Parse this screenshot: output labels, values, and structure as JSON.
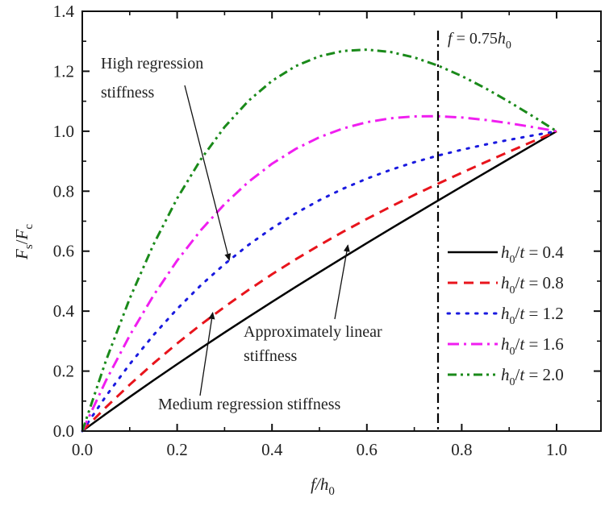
{
  "chart_data": {
    "type": "line",
    "title": "",
    "xlabel": "f/h0",
    "xlabel_parts": {
      "main": "f/h",
      "sub": "0"
    },
    "ylabel": "Fs/Fc",
    "ylabel_parts": {
      "a": "F",
      "a_sub": "s",
      "slash": "/",
      "b": "F",
      "b_sub": "c"
    },
    "xlim": [
      0.0,
      1.0
    ],
    "ylim": [
      0.0,
      1.4
    ],
    "xticks": [
      "0.0",
      "0.2",
      "0.4",
      "0.6",
      "0.8",
      "1.0"
    ],
    "yticks": [
      "0.0",
      "0.2",
      "0.4",
      "0.6",
      "0.8",
      "1.0",
      "1.2",
      "1.4"
    ],
    "grid": false,
    "legend_position": "lower-right",
    "x": [
      0,
      0.05,
      0.1,
      0.15,
      0.2,
      0.25,
      0.3,
      0.35,
      0.4,
      0.45,
      0.5,
      0.55,
      0.6,
      0.65,
      0.7,
      0.75,
      0.8,
      0.85,
      0.9,
      0.95,
      1.0
    ],
    "series": [
      {
        "name": "h0/t = 0.4",
        "label_main": "h",
        "label_sub": "0",
        "label_rest": "/t = 0.4",
        "color": "#000000",
        "style": "solid",
        "values": [
          0,
          0.0574,
          0.1137,
          0.1689,
          0.223,
          0.2763,
          0.3286,
          0.38,
          0.4307,
          0.4807,
          0.53,
          0.5787,
          0.6269,
          0.6746,
          0.7218,
          0.7688,
          0.8154,
          0.8617,
          0.9079,
          0.954,
          1.0
        ]
      },
      {
        "name": "h0/t = 0.8",
        "label_main": "h",
        "label_sub": "0",
        "label_rest": "/t = 0.8",
        "color": "#e8141c",
        "style": "dash",
        "values": [
          0,
          0.0796,
          0.1547,
          0.2255,
          0.2922,
          0.355,
          0.4142,
          0.4701,
          0.5229,
          0.5728,
          0.62,
          0.6648,
          0.7075,
          0.7483,
          0.7874,
          0.825,
          0.8614,
          0.8969,
          0.9317,
          0.966,
          1.0
        ]
      },
      {
        "name": "h0/t = 1.2",
        "label_main": "h",
        "label_sub": "0",
        "label_rest": "/t = 1.2",
        "color": "#1a1adf",
        "style": "dot",
        "values": [
          0,
          0.1167,
          0.2231,
          0.3198,
          0.4074,
          0.4863,
          0.557,
          0.6203,
          0.6765,
          0.7262,
          0.77,
          0.8084,
          0.8419,
          0.8711,
          0.8966,
          0.9188,
          0.9382,
          0.9556,
          0.9713,
          0.9859,
          1.0
        ]
      },
      {
        "name": "h0/t = 1.6",
        "label_main": "h",
        "label_sub": "0",
        "label_rest": "/t = 1.6",
        "color": "#f01ef0",
        "style": "dashdot",
        "values": [
          0,
          0.1686,
          0.3189,
          0.4519,
          0.5686,
          0.67,
          0.757,
          0.8305,
          0.8915,
          0.941,
          0.98,
          1.0094,
          1.0301,
          1.0431,
          1.0494,
          1.05,
          1.0458,
          1.0377,
          1.0267,
          1.0138,
          1.0
        ]
      },
      {
        "name": "h0/t = 2.0",
        "label_main": "h",
        "label_sub": "0",
        "label_rest": "/t = 2.0",
        "color": "#1a8a1a",
        "style": "dashdotdot",
        "values": [
          0,
          0.2353,
          0.442,
          0.6218,
          0.776,
          0.9063,
          1.014,
          1.1008,
          1.168,
          1.2173,
          1.25,
          1.2678,
          1.272,
          1.2643,
          1.246,
          1.2188,
          1.184,
          1.1433,
          1.098,
          1.0498,
          1.0
        ]
      }
    ],
    "vline": {
      "x": 0.75,
      "label_main": "f",
      "label_eq": " = 0.75",
      "label_h": "h",
      "label_sub": "0",
      "style": "dashdot",
      "color": "#000000"
    },
    "annotations": [
      {
        "id": "high",
        "lines": [
          "High regression",
          "stiffness"
        ],
        "points_to_series": "h0/t = 1.2",
        "arrow_to": [
          0.31,
          0.57
        ]
      },
      {
        "id": "medium",
        "lines": [
          "Medium regression stiffness"
        ],
        "points_to_series": "h0/t = 0.8",
        "arrow_to": [
          0.275,
          0.395
        ]
      },
      {
        "id": "linear",
        "lines": [
          "Approximately linear",
          "stiffness"
        ],
        "points_to_series": "h0/t = 0.4",
        "arrow_to": [
          0.56,
          0.62
        ]
      }
    ]
  }
}
